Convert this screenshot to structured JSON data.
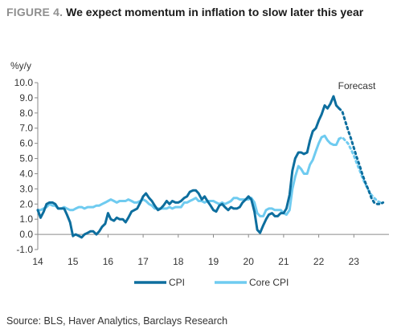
{
  "header": {
    "figure_label": "FIGURE 4.",
    "title": "We expect momentum in inflation to slow later this year"
  },
  "source": "Source: BLS, Haver Analytics, Barclays Research",
  "chart_data": {
    "type": "line",
    "title": "We expect momentum in inflation to slow later this year",
    "ylabel": "%y/y",
    "xlabel": "",
    "ylim": [
      -1.0,
      10.0
    ],
    "y_ticks": [
      -1.0,
      0.0,
      1.0,
      2.0,
      3.0,
      4.0,
      5.0,
      6.0,
      7.0,
      8.0,
      9.0,
      10.0
    ],
    "y_tick_labels": [
      "-1.0",
      "0.0",
      "1.0",
      "2.0",
      "3.0",
      "4.0",
      "5.0",
      "6.0",
      "7.0",
      "8.0",
      "9.0",
      "10.0"
    ],
    "xlim": [
      2014.0,
      2024.0
    ],
    "x_ticks": [
      2014,
      2015,
      2016,
      2017,
      2018,
      2019,
      2020,
      2021,
      2022,
      2023
    ],
    "x_tick_labels": [
      "14",
      "15",
      "16",
      "17",
      "18",
      "19",
      "20",
      "21",
      "22",
      "23"
    ],
    "annotations": [
      {
        "text": "Forecast",
        "x": 2022.55,
        "y": 9.8
      }
    ],
    "grid": false,
    "legend": "bottom",
    "series": [
      {
        "name": "CPI",
        "color": "#0d6e9e",
        "style": "solid",
        "x": [
          2014.0,
          2014.08,
          2014.17,
          2014.25,
          2014.33,
          2014.42,
          2014.5,
          2014.58,
          2014.67,
          2014.75,
          2014.83,
          2014.92,
          2015.0,
          2015.08,
          2015.17,
          2015.25,
          2015.33,
          2015.42,
          2015.5,
          2015.58,
          2015.67,
          2015.75,
          2015.83,
          2015.92,
          2016.0,
          2016.08,
          2016.17,
          2016.25,
          2016.33,
          2016.42,
          2016.5,
          2016.58,
          2016.67,
          2016.75,
          2016.83,
          2016.92,
          2017.0,
          2017.08,
          2017.17,
          2017.25,
          2017.33,
          2017.42,
          2017.5,
          2017.58,
          2017.67,
          2017.75,
          2017.83,
          2017.92,
          2018.0,
          2018.08,
          2018.17,
          2018.25,
          2018.33,
          2018.42,
          2018.5,
          2018.58,
          2018.67,
          2018.75,
          2018.83,
          2018.92,
          2019.0,
          2019.08,
          2019.17,
          2019.25,
          2019.33,
          2019.42,
          2019.5,
          2019.58,
          2019.67,
          2019.75,
          2019.83,
          2019.92,
          2020.0,
          2020.08,
          2020.17,
          2020.25,
          2020.33,
          2020.42,
          2020.5,
          2020.58,
          2020.67,
          2020.75,
          2020.83,
          2020.92,
          2021.0,
          2021.08,
          2021.17,
          2021.25,
          2021.33,
          2021.42,
          2021.5,
          2021.58,
          2021.67,
          2021.75,
          2021.83,
          2021.92,
          2022.0,
          2022.08,
          2022.17,
          2022.25,
          2022.33,
          2022.42,
          2022.5,
          2022.58
        ],
        "values": [
          1.6,
          1.1,
          1.5,
          2.0,
          2.1,
          2.1,
          2.0,
          1.7,
          1.7,
          1.7,
          1.3,
          0.8,
          -0.1,
          0.0,
          -0.1,
          -0.2,
          0.0,
          0.1,
          0.2,
          0.2,
          0.0,
          0.2,
          0.5,
          0.7,
          1.4,
          1.0,
          0.9,
          1.1,
          1.0,
          1.0,
          0.8,
          1.1,
          1.5,
          1.6,
          1.7,
          2.1,
          2.5,
          2.7,
          2.4,
          2.2,
          1.9,
          1.6,
          1.7,
          1.9,
          2.2,
          2.0,
          2.2,
          2.1,
          2.1,
          2.2,
          2.4,
          2.5,
          2.8,
          2.9,
          2.9,
          2.7,
          2.3,
          2.5,
          2.2,
          1.9,
          1.6,
          1.5,
          1.9,
          2.0,
          1.8,
          1.6,
          1.8,
          1.7,
          1.7,
          1.8,
          2.1,
          2.3,
          2.5,
          2.3,
          1.5,
          0.3,
          0.1,
          0.6,
          1.0,
          1.3,
          1.4,
          1.2,
          1.2,
          1.4,
          1.4,
          1.7,
          2.6,
          4.2,
          5.0,
          5.4,
          5.4,
          5.3,
          5.4,
          6.2,
          6.8,
          7.0,
          7.5,
          7.9,
          8.5,
          8.3,
          8.6,
          9.1,
          8.5,
          8.3
        ],
        "forecast_x": [
          2022.58,
          2022.67,
          2022.75,
          2022.83,
          2022.92,
          2023.0,
          2023.08,
          2023.17,
          2023.25,
          2023.33,
          2023.42,
          2023.5,
          2023.58,
          2023.67,
          2023.75,
          2023.83
        ],
        "forecast_values": [
          8.3,
          8.1,
          7.5,
          6.9,
          6.3,
          5.7,
          5.1,
          4.5,
          3.9,
          3.4,
          2.9,
          2.4,
          2.1,
          2.0,
          2.0,
          2.1
        ]
      },
      {
        "name": "Core CPI",
        "color": "#6fcbf0",
        "style": "solid",
        "x": [
          2014.0,
          2014.08,
          2014.17,
          2014.25,
          2014.33,
          2014.42,
          2014.5,
          2014.58,
          2014.67,
          2014.75,
          2014.83,
          2014.92,
          2015.0,
          2015.08,
          2015.17,
          2015.25,
          2015.33,
          2015.42,
          2015.5,
          2015.58,
          2015.67,
          2015.75,
          2015.83,
          2015.92,
          2016.0,
          2016.08,
          2016.17,
          2016.25,
          2016.33,
          2016.42,
          2016.5,
          2016.58,
          2016.67,
          2016.75,
          2016.83,
          2016.92,
          2017.0,
          2017.08,
          2017.17,
          2017.25,
          2017.33,
          2017.42,
          2017.5,
          2017.58,
          2017.67,
          2017.75,
          2017.83,
          2017.92,
          2018.0,
          2018.08,
          2018.17,
          2018.25,
          2018.33,
          2018.42,
          2018.5,
          2018.58,
          2018.67,
          2018.75,
          2018.83,
          2018.92,
          2019.0,
          2019.08,
          2019.17,
          2019.25,
          2019.33,
          2019.42,
          2019.5,
          2019.58,
          2019.67,
          2019.75,
          2019.83,
          2019.92,
          2020.0,
          2020.08,
          2020.17,
          2020.25,
          2020.33,
          2020.42,
          2020.5,
          2020.58,
          2020.67,
          2020.75,
          2020.83,
          2020.92,
          2021.0,
          2021.08,
          2021.17,
          2021.25,
          2021.33,
          2021.42,
          2021.5,
          2021.58,
          2021.67,
          2021.75,
          2021.83,
          2021.92,
          2022.0,
          2022.08,
          2022.17,
          2022.25,
          2022.33,
          2022.42,
          2022.5,
          2022.58
        ],
        "values": [
          1.6,
          1.6,
          1.7,
          1.8,
          2.0,
          1.9,
          1.9,
          1.7,
          1.7,
          1.8,
          1.7,
          1.6,
          1.6,
          1.7,
          1.8,
          1.8,
          1.7,
          1.8,
          1.8,
          1.8,
          1.9,
          1.9,
          2.0,
          2.1,
          2.2,
          2.3,
          2.2,
          2.1,
          2.2,
          2.2,
          2.2,
          2.3,
          2.2,
          2.1,
          2.1,
          2.2,
          2.3,
          2.2,
          2.0,
          1.9,
          1.7,
          1.7,
          1.7,
          1.7,
          1.7,
          1.8,
          1.7,
          1.8,
          1.8,
          1.8,
          2.1,
          2.1,
          2.2,
          2.3,
          2.4,
          2.2,
          2.2,
          2.1,
          2.2,
          2.2,
          2.2,
          2.1,
          2.0,
          2.1,
          2.0,
          2.1,
          2.2,
          2.4,
          2.4,
          2.3,
          2.3,
          2.3,
          2.3,
          2.4,
          2.1,
          1.4,
          1.2,
          1.2,
          1.6,
          1.7,
          1.7,
          1.6,
          1.6,
          1.6,
          1.4,
          1.3,
          1.6,
          3.0,
          3.8,
          4.5,
          4.3,
          4.0,
          4.0,
          4.6,
          4.9,
          5.5,
          6.0,
          6.4,
          6.5,
          6.2,
          6.0,
          5.9,
          5.9,
          6.3
        ],
        "forecast_x": [
          2022.58,
          2022.67,
          2022.75,
          2022.83,
          2022.92,
          2023.0,
          2023.08,
          2023.17,
          2023.25,
          2023.33,
          2023.42,
          2023.5,
          2023.58,
          2023.67,
          2023.75,
          2023.83
        ],
        "forecast_values": [
          6.3,
          6.4,
          6.2,
          6.0,
          5.6,
          5.2,
          4.7,
          4.2,
          3.7,
          3.3,
          2.9,
          2.6,
          2.4,
          2.2,
          2.1,
          2.1
        ]
      }
    ]
  }
}
